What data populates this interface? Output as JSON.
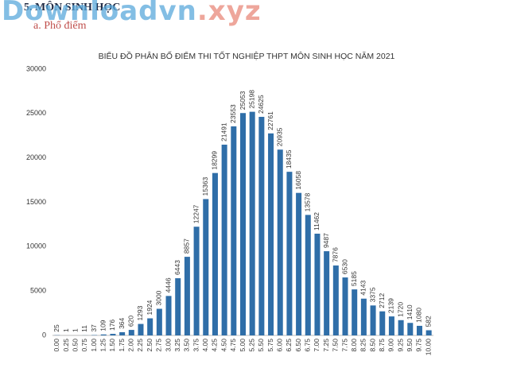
{
  "header": {
    "section": "5.  MÔN SINH HỌC",
    "subsection": "a.   Phổ điểm"
  },
  "watermark": {
    "main": "Downloadvn",
    "suffix": ".xyz"
  },
  "chart_data": {
    "type": "bar",
    "title": "BIỂU ĐỒ PHÂN BỐ ĐIỂM THI TỐT NGHIỆP THPT MÔN SINH HỌC NĂM 2021",
    "categories": [
      "0.00",
      "0.25",
      "0.50",
      "0.75",
      "1.00",
      "1.25",
      "1.50",
      "1.75",
      "2.00",
      "2.25",
      "2.50",
      "2.75",
      "3.00",
      "3.25",
      "3.50",
      "3.75",
      "4.00",
      "4.25",
      "4.50",
      "4.75",
      "5.00",
      "5.25",
      "5.50",
      "5.75",
      "6.00",
      "6.25",
      "6.50",
      "6.75",
      "7.00",
      "7.25",
      "7.50",
      "7.75",
      "8.00",
      "8.25",
      "8.50",
      "8.75",
      "9.00",
      "9.25",
      "9.50",
      "9.75",
      "10.00"
    ],
    "values": [
      25,
      1,
      1,
      11,
      37,
      109,
      176,
      364,
      620,
      1293,
      1924,
      3000,
      4446,
      6443,
      8857,
      12247,
      15363,
      18299,
      21491,
      23553,
      25053,
      25198,
      24625,
      22761,
      20935,
      18435,
      16058,
      13578,
      11462,
      9487,
      7876,
      6530,
      5185,
      4143,
      3375,
      2712,
      2139,
      1720,
      1410,
      1080,
      582
    ],
    "color": "#2f6ea8",
    "ylim": [
      0,
      30000
    ],
    "yticks": [
      0,
      5000,
      10000,
      15000,
      20000,
      25000,
      30000
    ],
    "grid": false
  }
}
